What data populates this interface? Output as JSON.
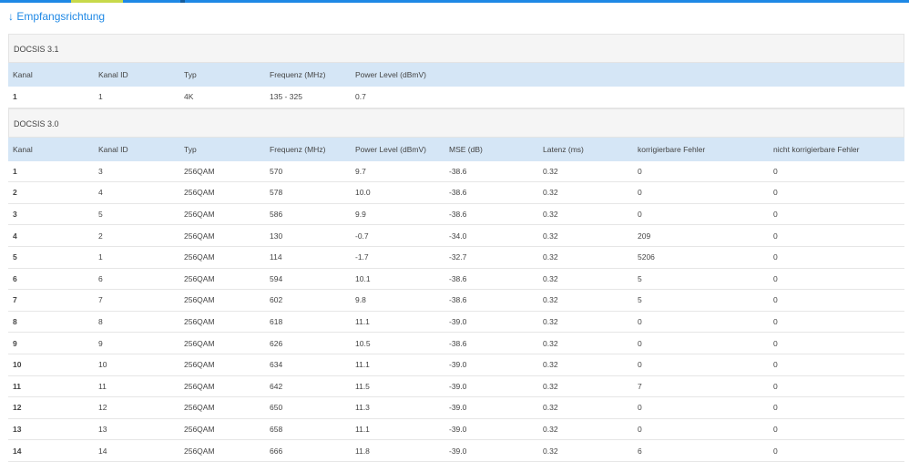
{
  "header": {
    "title": "↓ Empfangsrichtung"
  },
  "sections": [
    {
      "title": "DOCSIS 3.1",
      "columns": [
        "Kanal",
        "Kanal ID",
        "Typ",
        "Frequenz (MHz)",
        "Power Level (dBmV)"
      ],
      "rows": [
        [
          "1",
          "1",
          "4K",
          "135 - 325",
          "0.7"
        ]
      ]
    },
    {
      "title": "DOCSIS 3.0",
      "columns": [
        "Kanal",
        "Kanal ID",
        "Typ",
        "Frequenz (MHz)",
        "Power Level (dBmV)",
        "MSE (dB)",
        "Latenz (ms)",
        "korrigierbare Fehler",
        "nicht korrigierbare Fehler"
      ],
      "rows": [
        [
          "1",
          "3",
          "256QAM",
          "570",
          "9.7",
          "-38.6",
          "0.32",
          "0",
          "0"
        ],
        [
          "2",
          "4",
          "256QAM",
          "578",
          "10.0",
          "-38.6",
          "0.32",
          "0",
          "0"
        ],
        [
          "3",
          "5",
          "256QAM",
          "586",
          "9.9",
          "-38.6",
          "0.32",
          "0",
          "0"
        ],
        [
          "4",
          "2",
          "256QAM",
          "130",
          "-0.7",
          "-34.0",
          "0.32",
          "209",
          "0"
        ],
        [
          "5",
          "1",
          "256QAM",
          "114",
          "-1.7",
          "-32.7",
          "0.32",
          "5206",
          "0"
        ],
        [
          "6",
          "6",
          "256QAM",
          "594",
          "10.1",
          "-38.6",
          "0.32",
          "5",
          "0"
        ],
        [
          "7",
          "7",
          "256QAM",
          "602",
          "9.8",
          "-38.6",
          "0.32",
          "5",
          "0"
        ],
        [
          "8",
          "8",
          "256QAM",
          "618",
          "11.1",
          "-39.0",
          "0.32",
          "0",
          "0"
        ],
        [
          "9",
          "9",
          "256QAM",
          "626",
          "10.5",
          "-38.6",
          "0.32",
          "0",
          "0"
        ],
        [
          "10",
          "10",
          "256QAM",
          "634",
          "11.1",
          "-39.0",
          "0.32",
          "0",
          "0"
        ],
        [
          "11",
          "11",
          "256QAM",
          "642",
          "11.5",
          "-39.0",
          "0.32",
          "7",
          "0"
        ],
        [
          "12",
          "12",
          "256QAM",
          "650",
          "11.3",
          "-39.0",
          "0.32",
          "0",
          "0"
        ],
        [
          "13",
          "13",
          "256QAM",
          "658",
          "11.1",
          "-39.0",
          "0.32",
          "0",
          "0"
        ],
        [
          "14",
          "14",
          "256QAM",
          "666",
          "11.8",
          "-39.0",
          "0.32",
          "6",
          "0"
        ]
      ]
    }
  ]
}
